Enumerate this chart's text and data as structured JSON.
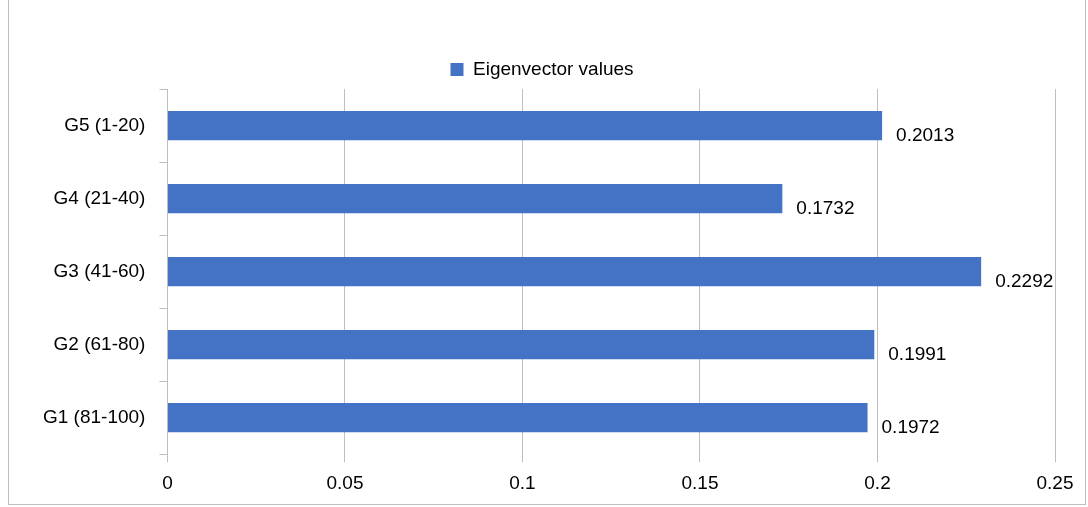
{
  "chart_data": {
    "type": "bar",
    "orientation": "horizontal",
    "categories": [
      "G5 (1-20)",
      "G4 (21-40)",
      "G3 (41-60)",
      "G2 (61-80)",
      "G1 (81-100)"
    ],
    "series": [
      {
        "name": "Eigenvector values",
        "color": "#4472c4",
        "values": [
          0.2013,
          0.1732,
          0.2292,
          0.1991,
          0.1972
        ]
      }
    ],
    "xlim": [
      0,
      0.25
    ],
    "xticks": [
      0,
      0.05,
      0.1,
      0.15,
      0.2,
      0.25
    ],
    "grid": "x",
    "legend": "top",
    "data_labels": true
  }
}
